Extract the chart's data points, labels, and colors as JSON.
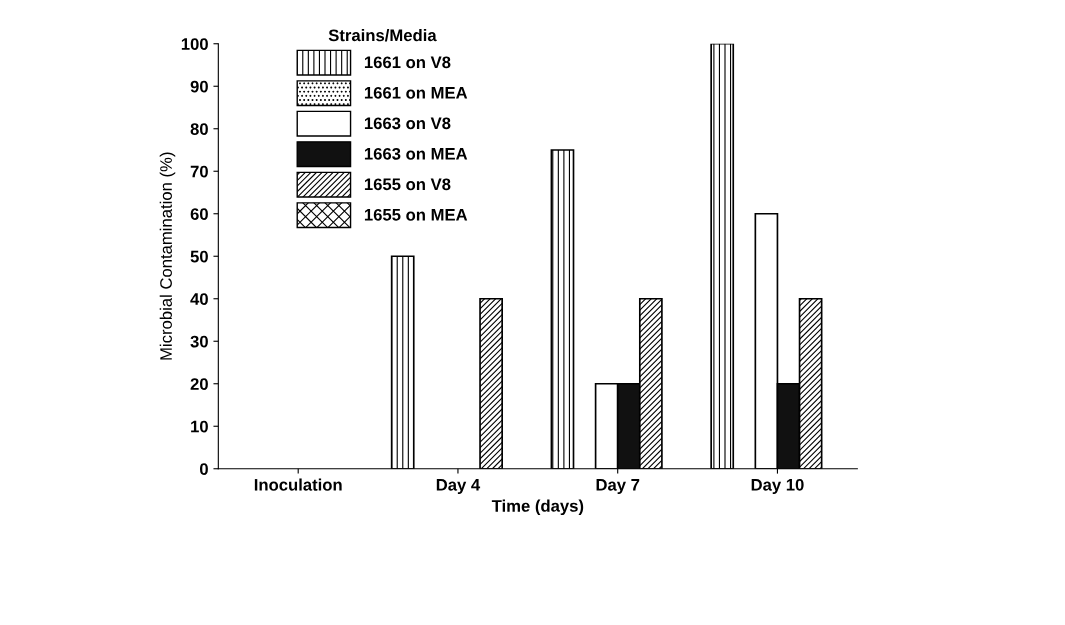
{
  "chart_data": {
    "type": "bar",
    "xlabel": "Time (days)",
    "ylabel": "Microbial Contamination (%)",
    "legend_title": "Strains/Media",
    "categories": [
      "Inoculation",
      "Day 4",
      "Day 7",
      "Day 10"
    ],
    "series": [
      {
        "name": "1661 on V8",
        "color": "#000000",
        "values": [
          0,
          50,
          75,
          100
        ]
      },
      {
        "name": "1661 on MEA",
        "color": "#000000",
        "values": [
          0,
          0,
          0,
          0
        ]
      },
      {
        "name": "1663 on V8",
        "color": "#ffffff",
        "values": [
          0,
          0,
          20,
          60
        ]
      },
      {
        "name": "1663 on MEA",
        "color": "#111111",
        "values": [
          0,
          0,
          20,
          20
        ]
      },
      {
        "name": "1655 on V8",
        "color": "#000000",
        "values": [
          0,
          40,
          40,
          40
        ]
      },
      {
        "name": "1655 on MEA",
        "color": "#000000",
        "values": [
          0,
          0,
          0,
          0
        ]
      }
    ],
    "ylim": [
      0,
      100
    ],
    "yticks": [
      0,
      10,
      20,
      30,
      40,
      50,
      60,
      70,
      80,
      90,
      100
    ],
    "grid": false,
    "legend": "top left"
  }
}
